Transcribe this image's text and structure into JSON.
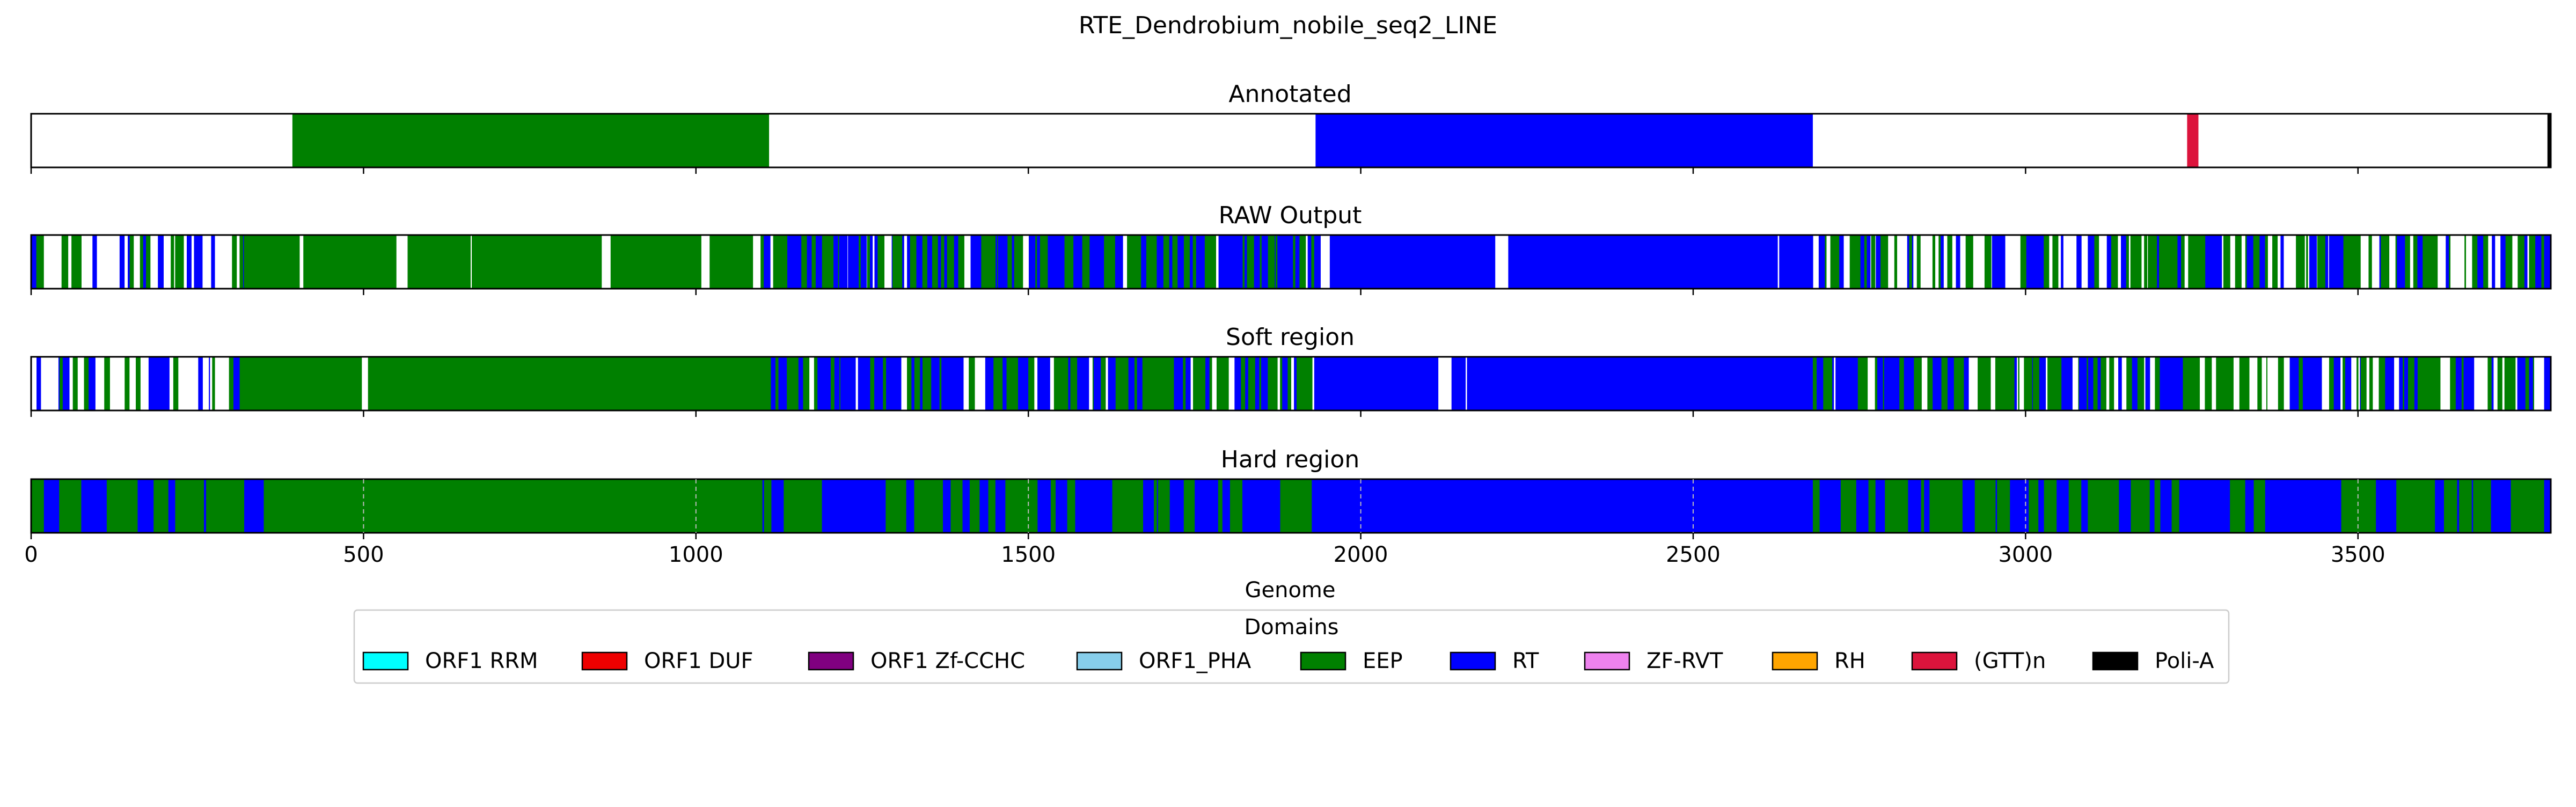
{
  "figure": {
    "title": "RTE_Dendrobium_nobile_seq2_LINE"
  },
  "chart_data": {
    "type": "genome-track",
    "x_range": [
      0,
      3790
    ],
    "xlabel": "Genome",
    "x_ticks": [
      0,
      500,
      1000,
      1500,
      2000,
      2500,
      3000,
      3500
    ],
    "legend": {
      "title": "Domains",
      "placement": "bottom-center",
      "entries": [
        {
          "label": "ORF1 RRM",
          "color": "#00ffff"
        },
        {
          "label": "ORF1 DUF",
          "color": "#ee0000"
        },
        {
          "label": "ORF1 Zf-CCHC",
          "color": "#800080"
        },
        {
          "label": "ORF1_PHA",
          "color": "#87ceeb"
        },
        {
          "label": "EEP",
          "color": "#008000"
        },
        {
          "label": "RT",
          "color": "#0000ff"
        },
        {
          "label": "ZF-RVT",
          "color": "#ee82ee"
        },
        {
          "label": "RH",
          "color": "#ffa500"
        },
        {
          "label": "(GTT)n",
          "color": "#dc143c"
        },
        {
          "label": "Poli-A",
          "color": "#000000"
        }
      ]
    },
    "tracks": [
      {
        "title": "Annotated",
        "style": "solid",
        "segments": [
          {
            "domain": "EEP",
            "start": 393,
            "end": 1110
          },
          {
            "domain": "RT",
            "start": 1932,
            "end": 2680
          },
          {
            "domain": "(GTT)n",
            "start": 3243,
            "end": 3260
          },
          {
            "domain": "Poli-A",
            "start": 3785,
            "end": 3790
          }
        ]
      },
      {
        "title": "RAW Output",
        "style": "striped",
        "regions": [
          {
            "domain": "EEP",
            "start": 0,
            "end": 320,
            "density": 0.55,
            "mix": "RT"
          },
          {
            "domain": "EEP",
            "start": 320,
            "end": 1100,
            "density": 0.95,
            "mix": "none"
          },
          {
            "domain": "RT",
            "start": 1100,
            "end": 1930,
            "density": 0.85,
            "mix": "EEP"
          },
          {
            "domain": "RT",
            "start": 1930,
            "end": 2680,
            "density": 0.92,
            "mix": "none"
          },
          {
            "domain": "EEP",
            "start": 2680,
            "end": 3790,
            "density": 0.7,
            "mix": "RT"
          }
        ]
      },
      {
        "title": "Soft region",
        "style": "striped",
        "regions": [
          {
            "domain": "EEP",
            "start": 0,
            "end": 320,
            "density": 0.55,
            "mix": "RT"
          },
          {
            "domain": "EEP",
            "start": 320,
            "end": 1100,
            "density": 0.96,
            "mix": "none"
          },
          {
            "domain": "RT",
            "start": 1100,
            "end": 1930,
            "density": 0.88,
            "mix": "EEP"
          },
          {
            "domain": "RT",
            "start": 1930,
            "end": 2680,
            "density": 0.96,
            "mix": "none"
          },
          {
            "domain": "EEP",
            "start": 2680,
            "end": 3790,
            "density": 0.72,
            "mix": "RT"
          }
        ]
      },
      {
        "title": "Hard region",
        "style": "filled",
        "regions": [
          {
            "domain": "EEP",
            "start": 0,
            "end": 360,
            "density": 1,
            "mix": "RT"
          },
          {
            "domain": "EEP",
            "start": 360,
            "end": 1100,
            "density": 1,
            "mix": "none"
          },
          {
            "domain": "RT",
            "start": 1100,
            "end": 1930,
            "density": 1,
            "mix": "EEP"
          },
          {
            "domain": "RT",
            "start": 1930,
            "end": 2680,
            "density": 1,
            "mix": "none"
          },
          {
            "domain": "EEP",
            "start": 2680,
            "end": 3790,
            "density": 1,
            "mix": "RT"
          }
        ]
      }
    ]
  }
}
